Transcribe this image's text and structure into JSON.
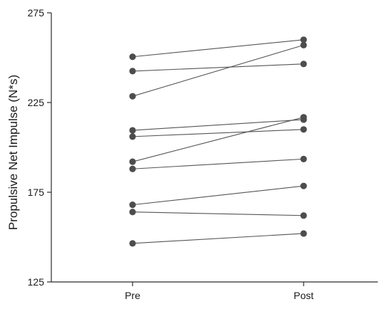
{
  "colors": {
    "point": "#4d4d4d",
    "line": "#555555",
    "axis": "#2b2b2b"
  },
  "chart_data": {
    "type": "line",
    "categories": [
      "Pre",
      "Post"
    ],
    "ylabel": "Propulsive Net Impulse (N*s)",
    "ylim": [
      125,
      275
    ],
    "yticks": [
      "125",
      "175",
      "225",
      "275"
    ],
    "grid": false,
    "series": [
      {
        "values": [
          250.5,
          260.0
        ]
      },
      {
        "values": [
          242.5,
          246.5
        ]
      },
      {
        "values": [
          228.5,
          257.0
        ]
      },
      {
        "values": [
          209.5,
          215.5
        ]
      },
      {
        "values": [
          206.0,
          210.0
        ]
      },
      {
        "values": [
          192.0,
          216.8
        ]
      },
      {
        "values": [
          188.0,
          193.5
        ]
      },
      {
        "values": [
          168.0,
          178.5
        ]
      },
      {
        "values": [
          164.0,
          162.0
        ]
      },
      {
        "values": [
          146.5,
          152.0
        ]
      }
    ]
  }
}
